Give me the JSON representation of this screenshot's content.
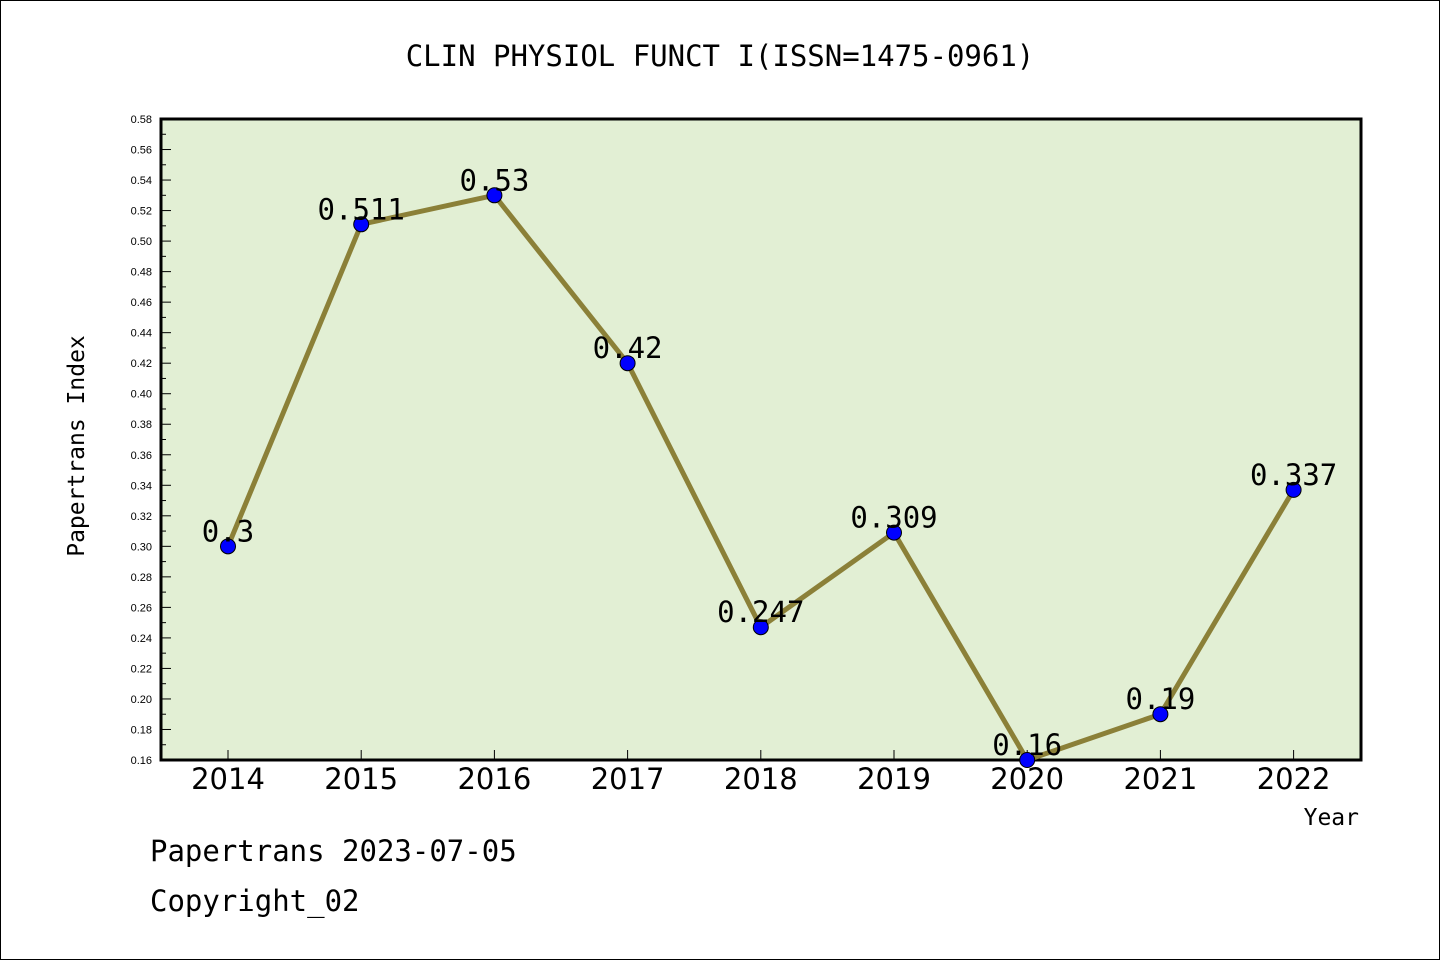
{
  "chart_data": {
    "type": "line",
    "title": "CLIN PHYSIOL FUNCT I(ISSN=1475-0961)",
    "xlabel": "Year",
    "ylabel": "Papertrans Index",
    "categories": [
      "2014",
      "2015",
      "2016",
      "2017",
      "2018",
      "2019",
      "2020",
      "2021",
      "2022"
    ],
    "series": [
      {
        "values": [
          0.3,
          0.511,
          0.53,
          0.42,
          0.247,
          0.309,
          0.16,
          0.19,
          0.337
        ],
        "labels": [
          "0.3",
          "0.511",
          "0.53",
          "0.42",
          "0.247",
          "0.309",
          "0.16",
          "0.19",
          "0.337"
        ]
      }
    ],
    "ylim": [
      0.16,
      0.58
    ],
    "yticks": [
      "0.16",
      "0.18",
      "0.20",
      "0.22",
      "0.24",
      "0.26",
      "0.28",
      "0.30",
      "0.32",
      "0.34",
      "0.36",
      "0.38",
      "0.40",
      "0.42",
      "0.44",
      "0.46",
      "0.48",
      "0.50",
      "0.52",
      "0.54",
      "0.56",
      "0.58"
    ],
    "grid": false,
    "colors": {
      "plot_background": "#e2efd4",
      "line": "#8b8038",
      "marker": "#0000ff"
    }
  },
  "footer": {
    "line1": "Papertrans 2023-07-05",
    "line2": "Copyright_02"
  }
}
